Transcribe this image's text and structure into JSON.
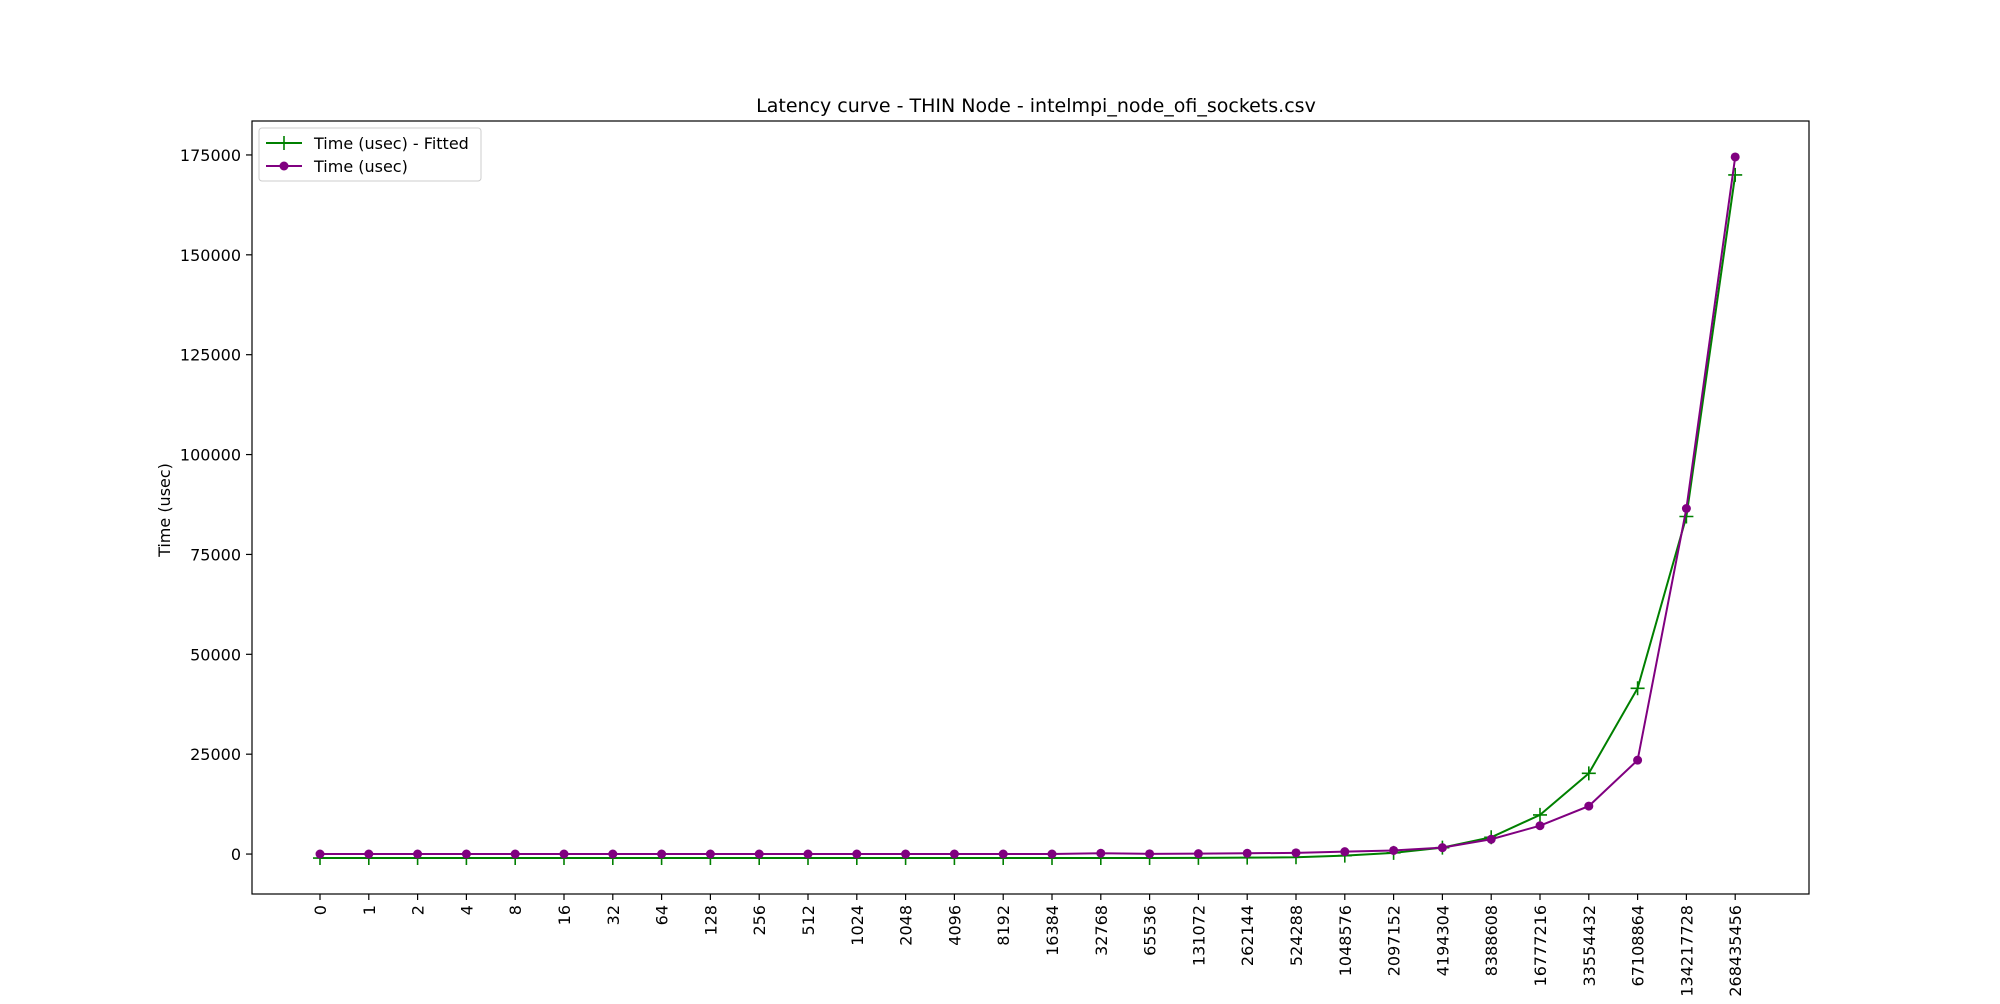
{
  "chart_data": {
    "type": "line",
    "title": "Latency curve - THIN Node - intelmpi_node_ofi_sockets.csv",
    "xlabel": "",
    "ylabel": "Time (usec)",
    "categories": [
      "0",
      "1",
      "2",
      "4",
      "8",
      "16",
      "32",
      "64",
      "128",
      "256",
      "512",
      "1024",
      "2048",
      "4096",
      "8192",
      "16384",
      "32768",
      "65536",
      "131072",
      "262144",
      "524288",
      "1048576",
      "2097152",
      "4194304",
      "8388608",
      "16777216",
      "33554432",
      "67108864",
      "134217728",
      "268435456"
    ],
    "yticks": [
      0,
      25000,
      50000,
      75000,
      100000,
      125000,
      150000,
      175000
    ],
    "ylim": [
      -10000,
      183500
    ],
    "grid": false,
    "legend_position": "top-left",
    "series": [
      {
        "name": "Time (usec) - Fitted",
        "color": "#008000",
        "marker": "plus",
        "values": [
          -1000,
          -1000,
          -1000,
          -1000,
          -1000,
          -1000,
          -1000,
          -1000,
          -1000,
          -1000,
          -1000,
          -1000,
          -1000,
          -1000,
          -1000,
          -1000,
          -1000,
          -1000,
          -950,
          -900,
          -800,
          -400,
          300,
          1600,
          4200,
          9800,
          20200,
          41500,
          84500,
          170000
        ]
      },
      {
        "name": "Time (usec)",
        "color": "#800080",
        "marker": "circle",
        "values": [
          0,
          0,
          0,
          0,
          0,
          0,
          0,
          0,
          0,
          0,
          0,
          0,
          0,
          0,
          0,
          0,
          200,
          50,
          100,
          200,
          300,
          600,
          900,
          1600,
          3700,
          7100,
          12000,
          23500,
          86500,
          174500
        ]
      }
    ]
  }
}
